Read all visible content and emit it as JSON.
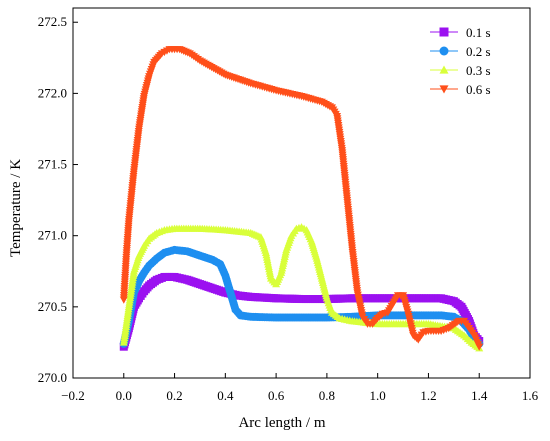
{
  "chart_data": {
    "type": "scatter",
    "title": "",
    "xlabel": "Arc length / m",
    "ylabel": "Temperature / K",
    "xlim": [
      -0.2,
      1.6
    ],
    "ylim": [
      270.0,
      272.6
    ],
    "xticks": [
      -0.2,
      0.0,
      0.2,
      0.4,
      0.6,
      0.8,
      1.0,
      1.2,
      1.4,
      1.6
    ],
    "xtick_labels": [
      "−0.2",
      "0.0",
      "0.2",
      "0.4",
      "0.6",
      "0.8",
      "1.0",
      "1.2",
      "1.4",
      "1.6"
    ],
    "yticks": [
      270.0,
      270.5,
      271.0,
      271.5,
      272.0,
      272.5
    ],
    "ytick_labels": [
      "270.0",
      "270.5",
      "271.0",
      "271.5",
      "272.0",
      "272.5"
    ],
    "grid": false,
    "legend_position": "top-right",
    "series": [
      {
        "name": "0.1 s",
        "color": "#9b11f0",
        "marker": "square",
        "points": [
          [
            0.0,
            270.22
          ],
          [
            0.02,
            270.35
          ],
          [
            0.04,
            270.5
          ],
          [
            0.06,
            270.56
          ],
          [
            0.08,
            270.61
          ],
          [
            0.1,
            270.65
          ],
          [
            0.13,
            270.69
          ],
          [
            0.16,
            270.71
          ],
          [
            0.2,
            270.71
          ],
          [
            0.25,
            270.69
          ],
          [
            0.3,
            270.66
          ],
          [
            0.35,
            270.63
          ],
          [
            0.4,
            270.6
          ],
          [
            0.45,
            270.58
          ],
          [
            0.5,
            270.57
          ],
          [
            0.6,
            270.56
          ],
          [
            0.7,
            270.555
          ],
          [
            0.8,
            270.555
          ],
          [
            0.9,
            270.56
          ],
          [
            1.0,
            270.56
          ],
          [
            1.1,
            270.56
          ],
          [
            1.2,
            270.56
          ],
          [
            1.25,
            270.56
          ],
          [
            1.3,
            270.54
          ],
          [
            1.33,
            270.5
          ],
          [
            1.36,
            270.4
          ],
          [
            1.38,
            270.3
          ],
          [
            1.4,
            270.26
          ]
        ]
      },
      {
        "name": "0.2 s",
        "color": "#1e8ff0",
        "marker": "circle",
        "points": [
          [
            0.0,
            270.24
          ],
          [
            0.02,
            270.4
          ],
          [
            0.04,
            270.6
          ],
          [
            0.06,
            270.68
          ],
          [
            0.08,
            270.74
          ],
          [
            0.1,
            270.79
          ],
          [
            0.13,
            270.84
          ],
          [
            0.16,
            270.88
          ],
          [
            0.2,
            270.9
          ],
          [
            0.25,
            270.89
          ],
          [
            0.3,
            270.86
          ],
          [
            0.35,
            270.83
          ],
          [
            0.38,
            270.8
          ],
          [
            0.4,
            270.72
          ],
          [
            0.42,
            270.6
          ],
          [
            0.44,
            270.48
          ],
          [
            0.46,
            270.44
          ],
          [
            0.5,
            270.43
          ],
          [
            0.6,
            270.425
          ],
          [
            0.7,
            270.425
          ],
          [
            0.8,
            270.425
          ],
          [
            0.9,
            270.43
          ],
          [
            1.0,
            270.44
          ],
          [
            1.1,
            270.44
          ],
          [
            1.2,
            270.44
          ],
          [
            1.25,
            270.44
          ],
          [
            1.3,
            270.43
          ],
          [
            1.33,
            270.4
          ],
          [
            1.36,
            270.34
          ],
          [
            1.38,
            270.28
          ],
          [
            1.4,
            270.24
          ]
        ]
      },
      {
        "name": "0.3 s",
        "color": "#d9ff3a",
        "marker": "triangle-up",
        "points": [
          [
            0.0,
            270.25
          ],
          [
            0.02,
            270.5
          ],
          [
            0.04,
            270.75
          ],
          [
            0.06,
            270.86
          ],
          [
            0.08,
            270.93
          ],
          [
            0.1,
            270.98
          ],
          [
            0.13,
            271.02
          ],
          [
            0.16,
            271.04
          ],
          [
            0.2,
            271.05
          ],
          [
            0.3,
            271.05
          ],
          [
            0.4,
            271.04
          ],
          [
            0.5,
            271.02
          ],
          [
            0.54,
            270.99
          ],
          [
            0.56,
            270.88
          ],
          [
            0.58,
            270.7
          ],
          [
            0.6,
            270.66
          ],
          [
            0.62,
            270.74
          ],
          [
            0.64,
            270.9
          ],
          [
            0.66,
            271.0
          ],
          [
            0.68,
            271.05
          ],
          [
            0.7,
            271.06
          ],
          [
            0.72,
            271.04
          ],
          [
            0.74,
            270.96
          ],
          [
            0.76,
            270.84
          ],
          [
            0.78,
            270.7
          ],
          [
            0.8,
            270.56
          ],
          [
            0.82,
            270.46
          ],
          [
            0.85,
            270.42
          ],
          [
            0.9,
            270.4
          ],
          [
            1.0,
            270.38
          ],
          [
            1.1,
            270.38
          ],
          [
            1.2,
            270.38
          ],
          [
            1.3,
            270.35
          ],
          [
            1.34,
            270.3
          ],
          [
            1.37,
            270.25
          ],
          [
            1.4,
            270.21
          ]
        ]
      },
      {
        "name": "0.6 s",
        "color": "#ff4f1a",
        "marker": "triangle-down",
        "points": [
          [
            0.0,
            270.55
          ],
          [
            0.01,
            270.85
          ],
          [
            0.02,
            271.1
          ],
          [
            0.04,
            271.45
          ],
          [
            0.06,
            271.75
          ],
          [
            0.08,
            271.98
          ],
          [
            0.1,
            272.12
          ],
          [
            0.12,
            272.22
          ],
          [
            0.15,
            272.28
          ],
          [
            0.18,
            272.31
          ],
          [
            0.22,
            272.31
          ],
          [
            0.26,
            272.28
          ],
          [
            0.3,
            272.23
          ],
          [
            0.4,
            272.13
          ],
          [
            0.5,
            272.07
          ],
          [
            0.6,
            272.02
          ],
          [
            0.7,
            271.98
          ],
          [
            0.78,
            271.94
          ],
          [
            0.82,
            271.9
          ],
          [
            0.84,
            271.84
          ],
          [
            0.86,
            271.6
          ],
          [
            0.88,
            271.25
          ],
          [
            0.9,
            270.9
          ],
          [
            0.92,
            270.6
          ],
          [
            0.94,
            270.43
          ],
          [
            0.96,
            270.38
          ],
          [
            0.98,
            270.38
          ],
          [
            1.0,
            270.42
          ],
          [
            1.02,
            270.45
          ],
          [
            1.04,
            270.46
          ],
          [
            1.06,
            270.52
          ],
          [
            1.08,
            270.58
          ],
          [
            1.1,
            270.58
          ],
          [
            1.12,
            270.45
          ],
          [
            1.14,
            270.3
          ],
          [
            1.16,
            270.27
          ],
          [
            1.18,
            270.32
          ],
          [
            1.2,
            270.33
          ],
          [
            1.25,
            270.33
          ],
          [
            1.28,
            270.35
          ],
          [
            1.32,
            270.4
          ],
          [
            1.34,
            270.4
          ],
          [
            1.36,
            270.35
          ],
          [
            1.38,
            270.3
          ],
          [
            1.4,
            270.22
          ]
        ]
      }
    ]
  }
}
